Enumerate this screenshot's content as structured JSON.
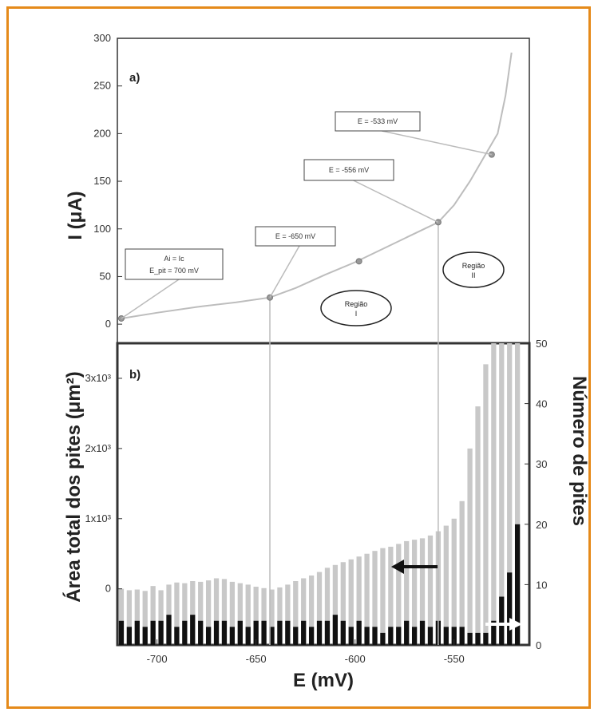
{
  "figure": {
    "frame_color": "#e58a1a"
  },
  "chart_data": [
    {
      "type": "line",
      "panel_label": "a)",
      "xlabel": "",
      "ylabel": "I (μA)",
      "xlim": [
        -720,
        -512
      ],
      "ylim": [
        -20,
        300
      ],
      "yticks": [
        "0",
        "50",
        "100",
        "150",
        "200",
        "250",
        "300"
      ],
      "yticks_values": [
        0,
        50,
        100,
        150,
        200,
        250,
        300
      ],
      "series": [
        {
          "x": [
            -718,
            -700,
            -680,
            -660,
            -643,
            -630,
            -615,
            -600,
            -585,
            -570,
            -558,
            -550,
            -542,
            -535,
            -528,
            -524,
            -521
          ],
          "y": [
            6,
            12,
            18,
            23,
            28,
            38,
            52,
            65,
            80,
            95,
            107,
            125,
            150,
            175,
            200,
            240,
            285
          ]
        }
      ],
      "markers": [
        {
          "x": -718,
          "y": 6
        },
        {
          "x": -643,
          "y": 28
        },
        {
          "x": -598,
          "y": 66
        },
        {
          "x": -558,
          "y": 107
        },
        {
          "x": -531,
          "y": 178
        }
      ],
      "annotations": [
        {
          "text": "Ai = Ic",
          "text2": "E_pit = 700 mV",
          "target": [
            -718,
            6
          ]
        },
        {
          "text": "E = -650 mV",
          "target": [
            -643,
            28
          ]
        },
        {
          "text": "E = -556 mV",
          "target": [
            -558,
            107
          ]
        },
        {
          "text": "E = -533 mV",
          "target": [
            -531,
            178
          ]
        }
      ],
      "regions": [
        {
          "label": "Região",
          "num": "I"
        },
        {
          "label": "Região",
          "num": "II"
        }
      ]
    },
    {
      "type": "bar",
      "panel_label": "b)",
      "xlabel": "E (mV)",
      "ylabel": "Área total dos pites (μm²)",
      "y2label": "Número de pites",
      "xlim": [
        -720,
        -512
      ],
      "xticks": [
        "-700",
        "-650",
        "-600",
        "-550"
      ],
      "xticks_values": [
        -700,
        -650,
        -600,
        -550
      ],
      "ylim": [
        -800,
        3500
      ],
      "yticks": [
        "0",
        "1x10³",
        "2x10³",
        "3x10³"
      ],
      "yticks_values": [
        0,
        1000,
        2000,
        3000
      ],
      "y2lim": [
        0,
        50
      ],
      "y2ticks": [
        "0",
        "10",
        "20",
        "30",
        "40",
        "50"
      ],
      "y2ticks_values": [
        0,
        10,
        20,
        30,
        40,
        50
      ],
      "x": [
        -718,
        -714,
        -710,
        -706,
        -702,
        -698,
        -694,
        -690,
        -686,
        -682,
        -678,
        -674,
        -670,
        -666,
        -662,
        -658,
        -654,
        -650,
        -646,
        -642,
        -638,
        -634,
        -630,
        -626,
        -622,
        -618,
        -614,
        -610,
        -606,
        -602,
        -598,
        -594,
        -590,
        -586,
        -582,
        -578,
        -574,
        -570,
        -566,
        -562,
        -558,
        -554,
        -550,
        -546,
        -542,
        -538,
        -534,
        -530,
        -526,
        -522,
        -518
      ],
      "series": [
        {
          "name": "Área total dos pites",
          "color": "#c8c8c8",
          "values": [
            0,
            -20,
            -10,
            -30,
            40,
            -20,
            60,
            90,
            80,
            110,
            100,
            120,
            150,
            140,
            100,
            80,
            60,
            30,
            10,
            -10,
            20,
            60,
            110,
            150,
            190,
            240,
            300,
            340,
            380,
            420,
            460,
            500,
            540,
            580,
            600,
            640,
            680,
            700,
            720,
            760,
            820,
            900,
            1000,
            1250,
            2000,
            2600,
            3200,
            3500,
            3500,
            3500,
            3500
          ]
        },
        {
          "name": "Número de pites",
          "color": "#111111",
          "values": [
            4,
            3,
            4,
            3,
            4,
            4,
            5,
            3,
            4,
            5,
            4,
            3,
            4,
            4,
            3,
            4,
            3,
            4,
            4,
            3,
            4,
            4,
            3,
            4,
            3,
            4,
            4,
            5,
            4,
            3,
            4,
            3,
            3,
            2,
            3,
            3,
            4,
            3,
            4,
            3,
            4,
            3,
            3,
            3,
            2,
            2,
            2,
            4,
            8,
            12,
            20
          ]
        }
      ],
      "arrows": [
        {
          "direction": "left",
          "color": "#111111"
        },
        {
          "direction": "right",
          "color": "#ffffff"
        }
      ]
    }
  ]
}
